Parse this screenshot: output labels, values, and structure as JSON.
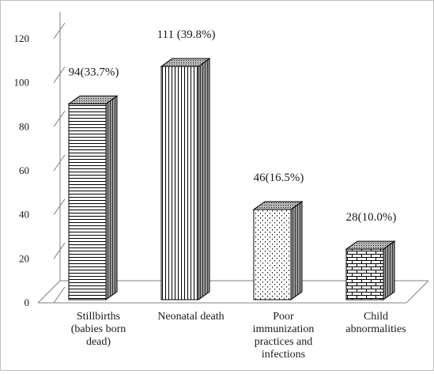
{
  "chart_data": {
    "type": "bar",
    "style": "3d-column",
    "title": "",
    "xlabel": "",
    "ylabel": "",
    "ylim": [
      0,
      120
    ],
    "yticks": [
      0,
      20,
      40,
      60,
      80,
      100,
      120
    ],
    "grid": false,
    "legend": "none",
    "categories": [
      [
        "Stillbirths",
        "(babies born",
        "dead)"
      ],
      [
        "Neonatal death"
      ],
      [
        "Poor",
        "immunization",
        "practices and",
        "infections"
      ],
      [
        "Child",
        "abnormalities"
      ]
    ],
    "values": [
      94,
      111,
      46,
      28
    ],
    "data_labels": [
      "94(33.7%)",
      "111 (39.8%)",
      "46(16.5%)",
      "28(10.0%)"
    ],
    "fill_patterns": [
      "horizontal-lines",
      "vertical-lines",
      "dots",
      "bricks"
    ],
    "colors": {
      "bar_fill": "#ffffff",
      "pattern": "#000000",
      "axis": "#808080",
      "frame": "#bfbfbf"
    }
  }
}
